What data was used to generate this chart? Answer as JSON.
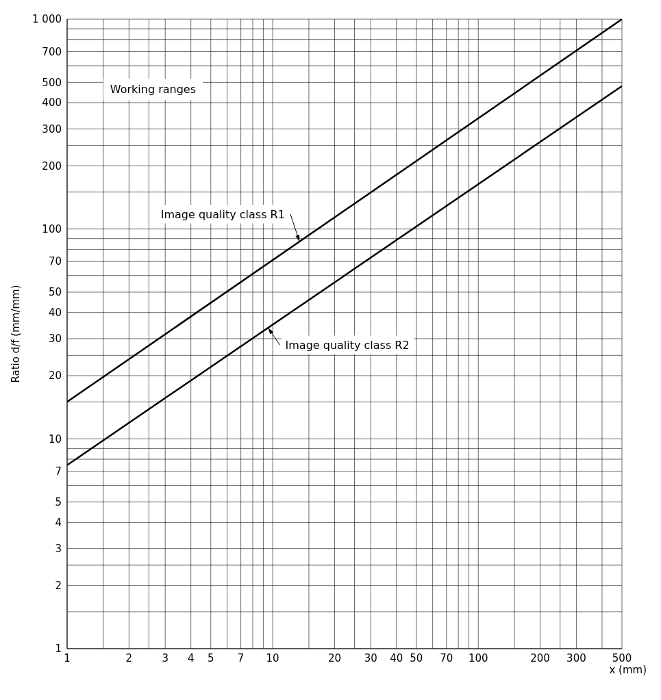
{
  "chart_data": {
    "type": "line",
    "ylabel": "Ratio d/f (mm/mm)",
    "xlabel": "x (mm)",
    "log": "xy",
    "grid": true,
    "legend": false,
    "marker": "none",
    "line_style": "solid",
    "annotations": [
      "Working ranges"
    ],
    "xlim": [
      1,
      500
    ],
    "ylim": [
      1,
      1000
    ],
    "xticks": [
      1,
      {
        "value": 1.5,
        "label": null
      },
      2,
      {
        "value": 2.5,
        "label": null
      },
      3,
      4,
      5,
      {
        "value": 6,
        "label": null
      },
      7,
      {
        "value": 8,
        "label": null
      },
      {
        "value": 9,
        "label": null
      },
      10,
      {
        "value": 15,
        "label": null
      },
      20,
      {
        "value": 25,
        "label": null
      },
      30,
      40,
      50,
      {
        "value": 60,
        "label": null
      },
      70,
      {
        "value": 80,
        "label": null
      },
      {
        "value": 90,
        "label": null
      },
      100,
      {
        "value": 150,
        "label": null
      },
      200,
      {
        "value": 250,
        "label": null
      },
      300,
      {
        "value": 400,
        "label": null
      },
      500
    ],
    "yticks": [
      1,
      {
        "value": 1.5,
        "label": null
      },
      2,
      {
        "value": 2.5,
        "label": null
      },
      3,
      4,
      5,
      {
        "value": 6,
        "label": null
      },
      7,
      {
        "value": 8,
        "label": null
      },
      {
        "value": 9,
        "label": null
      },
      10,
      {
        "value": 15,
        "label": null
      },
      20,
      {
        "value": 25,
        "label": null
      },
      30,
      40,
      50,
      {
        "value": 60,
        "label": null
      },
      70,
      {
        "value": 80,
        "label": null
      },
      {
        "value": 90,
        "label": null
      },
      100,
      {
        "value": 150,
        "label": null
      },
      200,
      {
        "value": 250,
        "label": null
      },
      300,
      400,
      500,
      {
        "value": 600,
        "label": null
      },
      700,
      {
        "value": 800,
        "label": null
      },
      {
        "value": 900,
        "label": null
      },
      {
        "value": 1000,
        "label": "1 000"
      }
    ],
    "x": [
      1,
      500
    ],
    "series": [
      {
        "name": "Image quality class R1",
        "color": "#000000",
        "values": [
          15,
          1000
        ]
      },
      {
        "name": "Image quality class R2",
        "color": "#000000",
        "values": [
          7.5,
          480
        ]
      }
    ]
  }
}
